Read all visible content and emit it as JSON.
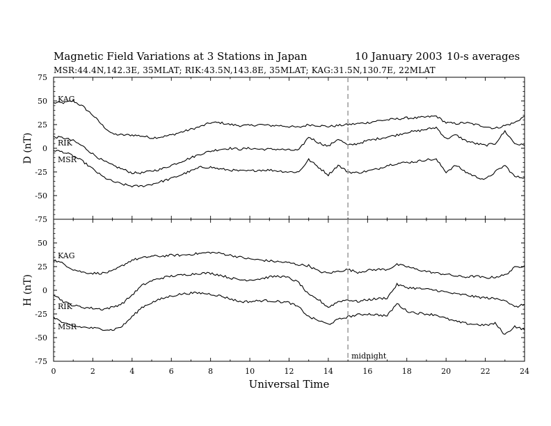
{
  "header": {
    "title": "Magnetic Field Variations at 3 Stations in Japan",
    "date": "10 January 2003",
    "averaging": "10-s averages",
    "stations": "MSR:44.4N,142.3E, 35MLAT;   RIK:43.5N,143.8E, 35MLAT;   KAG:31.5N,130.7E, 22MLAT"
  },
  "chart_data": [
    {
      "type": "line",
      "ylabel": "D (nT)",
      "ylim": [
        -75,
        75
      ],
      "yticks": [
        "75",
        "50",
        "25",
        "0",
        "-25",
        "-50",
        "-75"
      ],
      "xlim": [
        0,
        24
      ],
      "series": [
        {
          "name": "KAG",
          "x": [
            0,
            0.5,
            1,
            1.5,
            2,
            2.5,
            3,
            3.5,
            4,
            4.5,
            5,
            5.5,
            6,
            6.5,
            7,
            7.5,
            8,
            8.5,
            9,
            9.5,
            10,
            10.5,
            11,
            11.5,
            12,
            12.5,
            13,
            13.5,
            14,
            14.5,
            15,
            15.5,
            16,
            16.5,
            17,
            17.5,
            18,
            18.5,
            19,
            19.5,
            20,
            20.5,
            21,
            21.5,
            22,
            22.5,
            23,
            23.5,
            24
          ],
          "values": [
            48,
            48,
            50,
            44,
            35,
            24,
            15,
            14,
            14,
            13,
            11,
            12,
            14,
            17,
            20,
            23,
            27,
            27,
            25,
            24,
            24,
            25,
            24,
            24,
            23,
            22,
            25,
            24,
            23,
            24,
            25,
            26,
            27,
            29,
            30,
            31,
            32,
            32,
            33,
            34,
            27,
            26,
            27,
            25,
            23,
            21,
            24,
            27,
            34
          ]
        },
        {
          "name": "RIK",
          "x": [
            0,
            0.5,
            1,
            1.5,
            2,
            2.5,
            3,
            3.5,
            4,
            4.5,
            5,
            5.5,
            6,
            6.5,
            7,
            7.5,
            8,
            8.5,
            9,
            9.5,
            10,
            10.5,
            11,
            11.5,
            12,
            12.5,
            13,
            13.5,
            14,
            14.5,
            15,
            15.5,
            16,
            16.5,
            17,
            17.5,
            18,
            18.5,
            19,
            19.5,
            20,
            20.5,
            21,
            21.5,
            22,
            22.5,
            23,
            23.5,
            24
          ],
          "values": [
            12,
            11,
            8,
            2,
            -6,
            -13,
            -18,
            -22,
            -26,
            -26,
            -24,
            -22,
            -18,
            -14,
            -10,
            -6,
            -3,
            -1,
            0,
            -1,
            0,
            -1,
            -1,
            -1,
            -2,
            -2,
            12,
            6,
            2,
            10,
            3,
            5,
            8,
            10,
            12,
            14,
            17,
            18,
            20,
            22,
            10,
            14,
            8,
            5,
            3,
            5,
            18,
            5,
            3
          ]
        },
        {
          "name": "MSR",
          "x": [
            0,
            0.5,
            1,
            1.5,
            2,
            2.5,
            3,
            3.5,
            4,
            4.5,
            5,
            5.5,
            6,
            6.5,
            7,
            7.5,
            8,
            8.5,
            9,
            9.5,
            10,
            10.5,
            11,
            11.5,
            12,
            12.5,
            13,
            13.5,
            14,
            14.5,
            15,
            15.5,
            16,
            16.5,
            17,
            17.5,
            18,
            18.5,
            19,
            19.5,
            20,
            20.5,
            21,
            21.5,
            22,
            22.5,
            23,
            23.5,
            24
          ],
          "values": [
            -2,
            -4,
            -8,
            -14,
            -22,
            -30,
            -35,
            -38,
            -40,
            -40,
            -38,
            -35,
            -32,
            -28,
            -24,
            -20,
            -20,
            -22,
            -23,
            -24,
            -24,
            -23,
            -23,
            -24,
            -25,
            -25,
            -12,
            -20,
            -28,
            -18,
            -25,
            -26,
            -24,
            -22,
            -18,
            -16,
            -15,
            -14,
            -12,
            -12,
            -25,
            -18,
            -25,
            -30,
            -33,
            -25,
            -18,
            -30,
            -31
          ]
        }
      ]
    },
    {
      "type": "line",
      "ylabel": "H (nT)",
      "ylim": [
        -75,
        75
      ],
      "yticks": [
        "75",
        "50",
        "25",
        "0",
        "-25",
        "-50",
        "-75"
      ],
      "xlim": [
        0,
        24
      ],
      "xlabel": "Universal Time",
      "xticks": [
        "0",
        "2",
        "4",
        "6",
        "8",
        "10",
        "12",
        "14",
        "16",
        "18",
        "20",
        "22",
        "24"
      ],
      "series": [
        {
          "name": "KAG",
          "x": [
            0,
            0.5,
            1,
            1.5,
            2,
            2.5,
            3,
            3.5,
            4,
            4.5,
            5,
            5.5,
            6,
            6.5,
            7,
            7.5,
            8,
            8.5,
            9,
            9.5,
            10,
            10.5,
            11,
            11.5,
            12,
            12.5,
            13,
            13.5,
            14,
            14.5,
            15,
            15.5,
            16,
            16.5,
            17,
            17.5,
            18,
            18.5,
            19,
            19.5,
            20,
            20.5,
            21,
            21.5,
            22,
            22.5,
            23,
            23.5,
            24
          ],
          "values": [
            32,
            28,
            22,
            19,
            18,
            18,
            20,
            26,
            32,
            34,
            36,
            36,
            37,
            37,
            38,
            39,
            40,
            39,
            37,
            35,
            33,
            32,
            31,
            30,
            29,
            27,
            26,
            20,
            18,
            20,
            22,
            19,
            21,
            22,
            22,
            27,
            25,
            22,
            20,
            18,
            17,
            15,
            14,
            15,
            13,
            14,
            16,
            24,
            26
          ]
        },
        {
          "name": "RIK",
          "x": [
            0,
            0.5,
            1,
            1.5,
            2,
            2.5,
            3,
            3.5,
            4,
            4.5,
            5,
            5.5,
            6,
            6.5,
            7,
            7.5,
            8,
            8.5,
            9,
            9.5,
            10,
            10.5,
            11,
            11.5,
            12,
            12.5,
            13,
            13.5,
            14,
            14.5,
            15,
            15.5,
            16,
            16.5,
            17,
            17.5,
            18,
            18.5,
            19,
            19.5,
            20,
            20.5,
            21,
            21.5,
            22,
            22.5,
            23,
            23.5,
            24
          ],
          "values": [
            -4,
            -12,
            -16,
            -18,
            -19,
            -20,
            -18,
            -14,
            -5,
            5,
            10,
            13,
            15,
            16,
            17,
            18,
            18,
            16,
            13,
            11,
            11,
            12,
            14,
            15,
            13,
            8,
            -5,
            -10,
            -18,
            -12,
            -10,
            -12,
            -10,
            -9,
            -8,
            6,
            3,
            2,
            1,
            0,
            -2,
            -4,
            -5,
            -7,
            -8,
            -9,
            -10,
            -18,
            -15
          ]
        },
        {
          "name": "MSR",
          "x": [
            0,
            0.5,
            1,
            1.5,
            2,
            2.5,
            3,
            3.5,
            4,
            4.5,
            5,
            5.5,
            6,
            6.5,
            7,
            7.5,
            8,
            8.5,
            9,
            9.5,
            10,
            10.5,
            11,
            11.5,
            12,
            12.5,
            13,
            13.5,
            14,
            14.5,
            15,
            15.5,
            16,
            16.5,
            17,
            17.5,
            18,
            18.5,
            19,
            19.5,
            20,
            20.5,
            21,
            21.5,
            22,
            22.5,
            23,
            23.5,
            24
          ],
          "values": [
            -28,
            -35,
            -38,
            -39,
            -40,
            -41,
            -42,
            -38,
            -28,
            -18,
            -13,
            -9,
            -6,
            -4,
            -3,
            -3,
            -4,
            -6,
            -9,
            -12,
            -12,
            -11,
            -11,
            -12,
            -13,
            -18,
            -28,
            -32,
            -36,
            -31,
            -28,
            -26,
            -25,
            -26,
            -27,
            -14,
            -22,
            -24,
            -25,
            -26,
            -30,
            -33,
            -35,
            -36,
            -37,
            -35,
            -47,
            -38,
            -42
          ]
        }
      ]
    }
  ],
  "annotation": {
    "marker_x": 15,
    "label": "midnight"
  }
}
